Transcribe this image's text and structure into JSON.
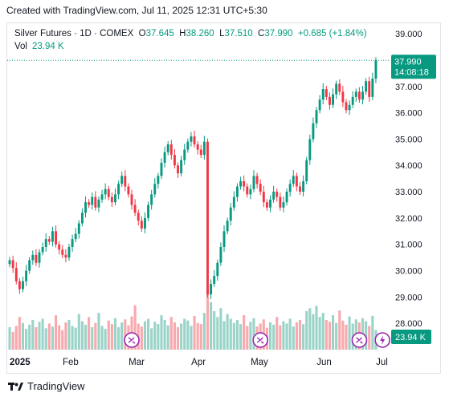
{
  "header_note": "Created with TradingView.com, Jul 11, 2025 12:31 UTC+5:30",
  "legend": {
    "symbol": "Silver Futures · 1D · COMEX",
    "o_label": "O",
    "o": "37.645",
    "h_label": "H",
    "h": "38.260",
    "l_label": "L",
    "l": "37.510",
    "c_label": "C",
    "c": "37.990",
    "change": "+0.685 (+1.84%)",
    "vol_label": "Vol",
    "vol": "23.94 K"
  },
  "price_badge": {
    "price": "37.990",
    "countdown": "14:08:18"
  },
  "volume_badge": "23.94 K",
  "footer_brand": "TradingView",
  "colors": {
    "up": "#089981",
    "down": "#f23645",
    "up_vol": "#9ad3c8",
    "down_vol": "#f7a9ad",
    "event": "#9c27b0"
  },
  "icons": [
    "dividend-event-icon",
    "split-event-icon",
    "tradingview-logo-icon"
  ],
  "chart_data": {
    "type": "candlestick",
    "y_ticks": [
      "39.000",
      "38.000",
      "37.000",
      "36.000",
      "35.000",
      "34.000",
      "33.000",
      "32.000",
      "31.000",
      "30.000",
      "29.000",
      "28.000"
    ],
    "ylim": [
      27.0,
      39.4
    ],
    "x_ticks": [
      "2025",
      "Feb",
      "Mar",
      "Apr",
      "May",
      "Jun",
      "Jul"
    ],
    "last_close": 37.99,
    "series": [
      {
        "values": [
          30.4,
          30.1,
          29.6,
          29.3,
          29.6,
          30.0,
          30.4,
          30.6,
          30.3,
          30.7,
          30.9,
          31.2,
          31.1,
          31.5,
          31.0,
          30.8,
          30.6,
          30.5,
          30.9,
          31.2,
          31.4,
          31.8,
          32.2,
          32.6,
          32.5,
          32.8,
          32.4,
          32.7,
          32.9,
          33.1,
          32.8,
          32.6,
          32.9,
          33.3,
          33.6,
          33.2,
          32.9,
          32.5,
          32.2,
          31.9,
          31.6,
          32.0,
          32.5,
          32.9,
          33.3,
          33.6,
          34.1,
          34.5,
          34.8,
          34.4,
          34.0,
          33.7,
          34.2,
          34.6,
          34.9,
          35.1,
          34.8,
          34.6,
          34.4,
          34.9,
          29.1,
          29.5,
          29.8,
          30.3,
          30.9,
          31.5,
          31.9,
          32.4,
          32.8,
          33.2,
          33.4,
          33.2,
          32.9,
          33.1,
          33.6,
          33.3,
          33.0,
          32.6,
          32.4,
          32.7,
          33.0,
          32.8,
          32.4,
          32.6,
          33.0,
          33.3,
          33.6,
          33.2,
          33.0,
          33.4,
          34.2,
          35.0,
          35.6,
          36.1,
          36.5,
          36.9,
          36.6,
          36.3,
          36.7,
          37.1,
          36.8,
          36.4,
          36.1,
          36.3,
          36.6,
          36.8,
          36.5,
          36.8,
          37.2,
          36.6,
          37.3,
          37.99
        ],
        "volumes": [
          0.38,
          0.3,
          0.4,
          0.55,
          0.45,
          0.35,
          0.42,
          0.5,
          0.38,
          0.47,
          0.52,
          0.36,
          0.44,
          0.39,
          0.58,
          0.41,
          0.33,
          0.46,
          0.5,
          0.4,
          0.37,
          0.6,
          0.48,
          0.42,
          0.55,
          0.38,
          0.45,
          0.62,
          0.4,
          0.35,
          0.49,
          0.43,
          0.53,
          0.38,
          0.46,
          0.51,
          0.41,
          0.56,
          0.75,
          0.44,
          0.39,
          0.48,
          0.52,
          0.36,
          0.47,
          0.43,
          0.58,
          0.5,
          0.41,
          0.55,
          0.46,
          0.38,
          0.44,
          0.52,
          0.49,
          0.4,
          0.57,
          0.45,
          0.43,
          0.62,
          1.0,
          0.8,
          0.65,
          0.55,
          0.7,
          0.48,
          0.6,
          0.52,
          0.45,
          0.5,
          0.43,
          0.58,
          0.4,
          0.47,
          0.53,
          0.39,
          0.44,
          0.51,
          0.37,
          0.46,
          0.42,
          0.55,
          0.41,
          0.48,
          0.44,
          0.52,
          0.39,
          0.46,
          0.5,
          0.43,
          0.65,
          0.7,
          0.6,
          0.74,
          0.55,
          0.62,
          0.5,
          0.47,
          0.58,
          0.45,
          0.66,
          0.49,
          0.42,
          0.56,
          0.44,
          0.51,
          0.46,
          0.53,
          0.48,
          0.4,
          0.57,
          0.33
        ],
        "events": [
          {
            "index": 37,
            "kind": "split"
          },
          {
            "index": 76,
            "kind": "split"
          },
          {
            "index": 106,
            "kind": "split"
          },
          {
            "index": 113,
            "kind": "dividend"
          }
        ]
      }
    ]
  }
}
